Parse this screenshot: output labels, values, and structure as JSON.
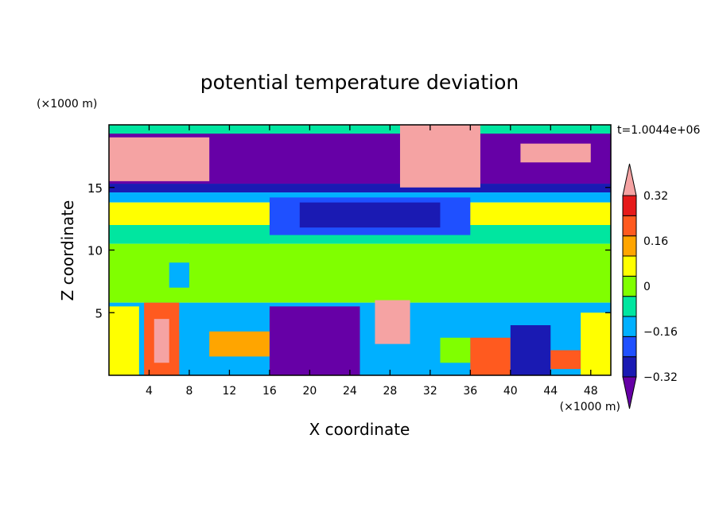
{
  "chart_data": {
    "type": "heatmap",
    "title": "potential temperature deviation",
    "xlabel": "X coordinate",
    "ylabel": "Z coordinate",
    "x_unit": "(×1000 m)",
    "z_unit": "(×1000 m)",
    "time_label": "t=1.0044e+06",
    "xlim": [
      0,
      50
    ],
    "ylim": [
      0,
      20
    ],
    "x_ticks": [
      4,
      8,
      12,
      16,
      20,
      24,
      28,
      32,
      36,
      40,
      44,
      48
    ],
    "y_ticks": [
      5,
      10,
      15
    ],
    "colorbar": {
      "levels": [
        -0.4,
        -0.32,
        -0.24,
        -0.16,
        -0.08,
        0,
        0.08,
        0.16,
        0.24,
        0.32,
        0.4
      ],
      "tick_labels": [
        "0.32",
        "0.16",
        "0",
        "−0.16",
        "−0.32"
      ],
      "tick_values": [
        0.32,
        0.16,
        0,
        -0.16,
        -0.32
      ],
      "colors": [
        "#6600a6",
        "#1a1ab3",
        "#1f50ff",
        "#00b0ff",
        "#00e6a0",
        "#80ff00",
        "#ffff00",
        "#ffa500",
        "#ff5a1f",
        "#e61a1a",
        "#f5a3a3"
      ],
      "extend": "both"
    },
    "regions": [
      {
        "x": [
          0,
          50
        ],
        "z": [
          15.3,
          20
        ],
        "value": -0.45
      },
      {
        "x": [
          0,
          50
        ],
        "z": [
          14.6,
          15.3
        ],
        "value": -0.3
      },
      {
        "x": [
          0,
          50
        ],
        "z": [
          13.8,
          14.6
        ],
        "value": -0.1
      },
      {
        "x": [
          0,
          50
        ],
        "z": [
          12,
          13.8
        ],
        "value": 0.12
      },
      {
        "x": [
          0,
          50
        ],
        "z": [
          10.5,
          12
        ],
        "value": -0.02
      },
      {
        "x": [
          0,
          50
        ],
        "z": [
          5.8,
          10.5
        ],
        "value": 0.03
      },
      {
        "x": [
          0,
          50
        ],
        "z": [
          0,
          5.8
        ],
        "value": -0.12
      },
      {
        "x": [
          0,
          50
        ],
        "z": [
          19.3,
          20
        ],
        "value": -0.05
      },
      {
        "x": [
          16,
          36
        ],
        "z": [
          11.2,
          14.2
        ],
        "value": -0.2
      },
      {
        "x": [
          19,
          33
        ],
        "z": [
          11.8,
          13.8
        ],
        "value": -0.3
      },
      {
        "x": [
          8,
          16
        ],
        "z": [
          6,
          10.5
        ],
        "value": 0.03
      },
      {
        "x": [
          6,
          8
        ],
        "z": [
          7,
          9
        ],
        "value": -0.1
      },
      {
        "x": [
          0,
          10
        ],
        "z": [
          15.5,
          19
        ],
        "value": 0.45
      },
      {
        "x": [
          29,
          37
        ],
        "z": [
          15,
          20
        ],
        "value": 0.45
      },
      {
        "x": [
          41,
          48
        ],
        "z": [
          17,
          18.5
        ],
        "value": 0.45
      },
      {
        "x": [
          0,
          3
        ],
        "z": [
          0,
          5.5
        ],
        "value": 0.15
      },
      {
        "x": [
          3.5,
          7
        ],
        "z": [
          0,
          5.8
        ],
        "value": 0.3
      },
      {
        "x": [
          4.5,
          6
        ],
        "z": [
          1,
          4.5
        ],
        "value": 0.45
      },
      {
        "x": [
          7,
          12
        ],
        "z": [
          3.5,
          5
        ],
        "value": -0.1
      },
      {
        "x": [
          10,
          16
        ],
        "z": [
          1.5,
          3.5
        ],
        "value": 0.2
      },
      {
        "x": [
          16,
          25
        ],
        "z": [
          0,
          5.5
        ],
        "value": -0.35
      },
      {
        "x": [
          26.5,
          30
        ],
        "z": [
          2.5,
          6
        ],
        "value": 0.45
      },
      {
        "x": [
          33,
          36
        ],
        "z": [
          1,
          3
        ],
        "value": 0.05
      },
      {
        "x": [
          36,
          40
        ],
        "z": [
          0,
          3
        ],
        "value": 0.25
      },
      {
        "x": [
          40,
          44
        ],
        "z": [
          0,
          4
        ],
        "value": -0.3
      },
      {
        "x": [
          44,
          47
        ],
        "z": [
          0.5,
          2
        ],
        "value": 0.3
      },
      {
        "x": [
          47,
          50
        ],
        "z": [
          0,
          5
        ],
        "value": 0.15
      }
    ]
  }
}
